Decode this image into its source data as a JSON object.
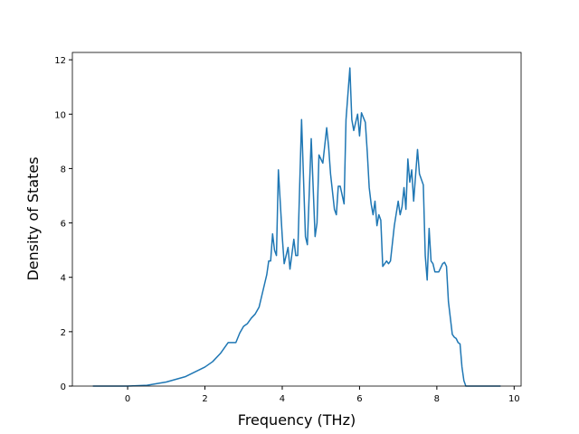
{
  "chart_data": {
    "type": "line",
    "x_label": "Frequency (THz)",
    "y_label": "Density of States",
    "xlim": [
      -1.43,
      10.18
    ],
    "ylim": [
      0,
      12.27
    ],
    "xticks": [
      0,
      2,
      4,
      6,
      8,
      10
    ],
    "yticks": [
      0,
      2,
      4,
      6,
      8,
      10,
      12
    ],
    "grid": false,
    "series": [
      {
        "color": "#1f77b4",
        "x": [
          -0.9,
          0,
          0.5,
          1,
          1.5,
          2,
          2.2,
          2.4,
          2.5,
          2.6,
          2.7,
          2.8,
          2.9,
          3.0,
          3.1,
          3.2,
          3.3,
          3.4,
          3.5,
          3.6,
          3.65,
          3.7,
          3.75,
          3.8,
          3.85,
          3.9,
          4.0,
          4.05,
          4.15,
          4.2,
          4.3,
          4.35,
          4.4,
          4.5,
          4.6,
          4.65,
          4.75,
          4.85,
          4.9,
          4.95,
          5.05,
          5.15,
          5.2,
          5.25,
          5.35,
          5.4,
          5.45,
          5.5,
          5.6,
          5.65,
          5.75,
          5.8,
          5.85,
          5.95,
          6.0,
          6.05,
          6.15,
          6.2,
          6.25,
          6.3,
          6.35,
          6.4,
          6.45,
          6.5,
          6.55,
          6.6,
          6.7,
          6.75,
          6.8,
          6.9,
          7.0,
          7.05,
          7.1,
          7.15,
          7.2,
          7.25,
          7.3,
          7.35,
          7.4,
          7.5,
          7.55,
          7.65,
          7.7,
          7.75,
          7.8,
          7.85,
          7.9,
          7.95,
          8.05,
          8.15,
          8.2,
          8.25,
          8.3,
          8.35,
          8.4,
          8.45,
          8.5,
          8.55,
          8.6,
          8.65,
          8.7,
          8.75,
          9.65
        ],
        "values": [
          0,
          0,
          0.03,
          0.15,
          0.35,
          0.7,
          0.9,
          1.2,
          1.4,
          1.6,
          1.6,
          1.6,
          1.95,
          2.2,
          2.3,
          2.5,
          2.65,
          2.9,
          3.5,
          4.1,
          4.6,
          4.6,
          5.6,
          5.0,
          4.8,
          7.95,
          5.5,
          4.5,
          5.1,
          4.3,
          5.4,
          4.8,
          4.8,
          9.8,
          5.5,
          5.2,
          9.1,
          5.5,
          6.0,
          8.5,
          8.2,
          9.5,
          8.8,
          7.8,
          6.5,
          6.3,
          7.35,
          7.35,
          6.7,
          9.8,
          11.7,
          9.8,
          9.4,
          10.0,
          9.2,
          10.05,
          9.7,
          8.6,
          7.3,
          6.7,
          6.3,
          6.8,
          5.9,
          6.3,
          6.1,
          4.4,
          4.6,
          4.5,
          4.6,
          5.9,
          6.8,
          6.3,
          6.6,
          7.3,
          6.5,
          8.35,
          7.5,
          7.95,
          6.8,
          8.7,
          7.8,
          7.4,
          4.8,
          3.9,
          5.8,
          4.6,
          4.5,
          4.2,
          4.2,
          4.5,
          4.55,
          4.4,
          3.1,
          2.5,
          1.9,
          1.8,
          1.75,
          1.6,
          1.55,
          0.7,
          0.2,
          0,
          0
        ]
      }
    ]
  }
}
